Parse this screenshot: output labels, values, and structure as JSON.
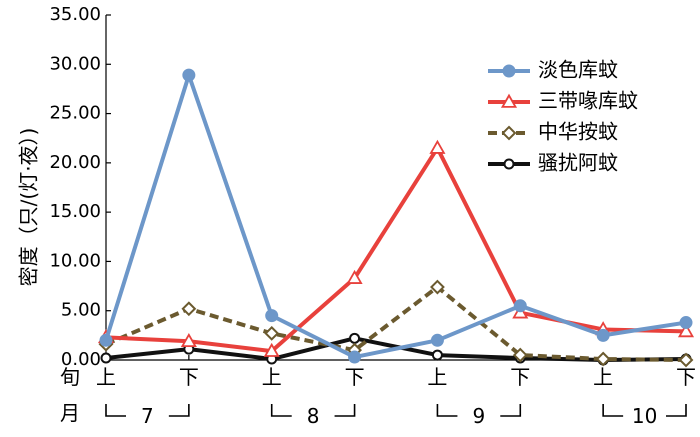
{
  "chart_data": {
    "type": "line",
    "ylabel": "密度（只/(灯·夜）)",
    "ylim": [
      0,
      35
    ],
    "yticks": [
      "0.00",
      "5.00",
      "10.00",
      "15.00",
      "20.00",
      "25.00",
      "30.00",
      "35.00"
    ],
    "row_labels": {
      "period": "旬",
      "month": "月"
    },
    "categories": [
      "上",
      "下",
      "上",
      "下",
      "上",
      "下",
      "上",
      "下"
    ],
    "months": [
      "7",
      "8",
      "9",
      "10"
    ],
    "legend_position": "top-right",
    "series": [
      {
        "name": "淡色库蚊",
        "color": "#6d97c9",
        "marker": "filled-circle",
        "dash": "solid",
        "values": [
          2.0,
          28.9,
          4.5,
          0.3,
          2.0,
          5.5,
          2.5,
          3.8
        ]
      },
      {
        "name": "三带喙库蚊",
        "color": "#e8413c",
        "marker": "open-triangle",
        "dash": "solid",
        "values": [
          2.3,
          1.9,
          0.9,
          8.3,
          21.5,
          4.8,
          3.1,
          2.9
        ]
      },
      {
        "name": "中华按蚊",
        "color": "#6b5a2f",
        "marker": "open-diamond",
        "dash": "dashed",
        "values": [
          1.6,
          5.2,
          2.7,
          1.0,
          7.4,
          0.5,
          0.1,
          0.0
        ]
      },
      {
        "name": "骚扰阿蚊",
        "color": "#111111",
        "marker": "open-circle",
        "dash": "solid",
        "values": [
          0.2,
          1.1,
          0.1,
          2.2,
          0.5,
          0.2,
          0.0,
          0.1
        ]
      }
    ]
  }
}
